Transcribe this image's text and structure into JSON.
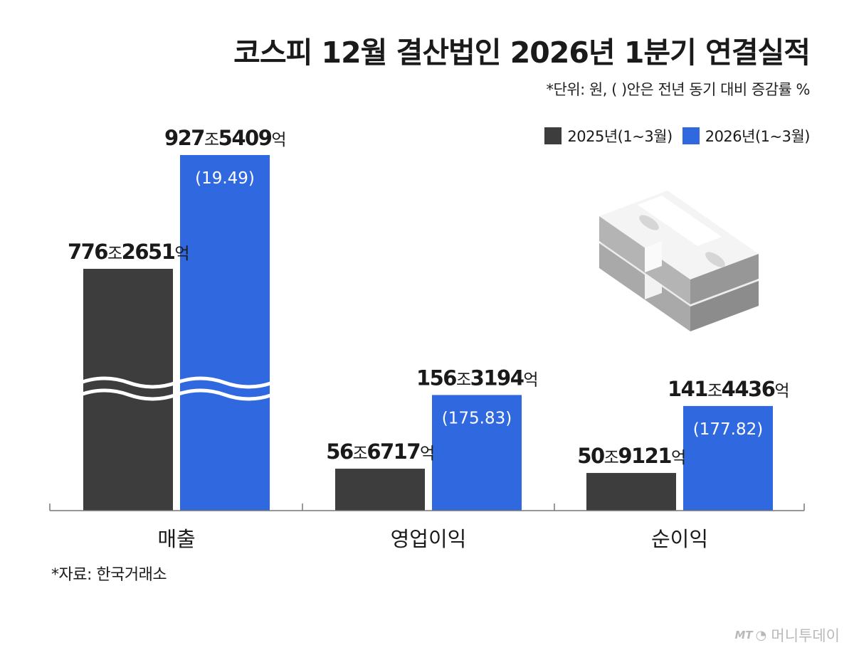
{
  "title": "코스피 12월 결산법인 2026년 1분기 연결실적",
  "subtitle": "*단위: 원, ( )안은 전년 동기 대비 증감률 %",
  "source": "*자료: 한국거래소",
  "watermark": {
    "mt": "MT",
    "name": "머니투데이"
  },
  "icons": {
    "money": "money-stack-icon",
    "logo": "mt-logo-icon"
  },
  "colors": {
    "series_2025": "#3d3d3d",
    "series_2026": "#3068e0",
    "axis": "#777777"
  },
  "chart_data": {
    "type": "bar",
    "categories": [
      "매출",
      "영업이익",
      "순이익"
    ],
    "axis_break": {
      "category": "매출"
    },
    "legend": {
      "position": "top-right"
    },
    "grid": false,
    "series": [
      {
        "name": "2025년(1~3월)",
        "values": [
          7762651,
          566717,
          509121
        ],
        "labels": [
          {
            "num1": "776",
            "unit1": "조",
            "num2": "2651",
            "unit2": "억"
          },
          {
            "num1": "56",
            "unit1": "조",
            "num2": "6717",
            "unit2": "억"
          },
          {
            "num1": "50",
            "unit1": "조",
            "num2": "9121",
            "unit2": "억"
          }
        ]
      },
      {
        "name": "2026년(1~3월)",
        "values": [
          9275409,
          1563194,
          1414436
        ],
        "labels": [
          {
            "num1": "927",
            "unit1": "조",
            "num2": "5409",
            "unit2": "억"
          },
          {
            "num1": "156",
            "unit1": "조",
            "num2": "3194",
            "unit2": "억"
          },
          {
            "num1": "141",
            "unit1": "조",
            "num2": "4436",
            "unit2": "억"
          }
        ],
        "changes": [
          "(19.49)",
          "(175.83)",
          "(177.82)"
        ]
      }
    ]
  }
}
